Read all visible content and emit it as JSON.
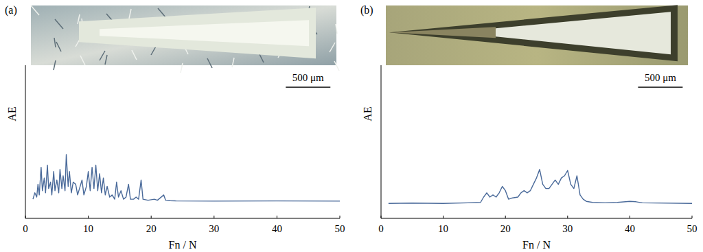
{
  "chart_data": [
    {
      "type": "line",
      "panel_label": "(a)",
      "x_label": "Fn / N",
      "y_label": "AE",
      "scale_bar_label": "500 μm",
      "color": "#4a6a9a",
      "line_style": "solid",
      "tick_labels": "x",
      "xlim": [
        0,
        50
      ],
      "ylim": [
        0,
        100
      ],
      "xticks": [
        0,
        10,
        20,
        30,
        40,
        50
      ],
      "x": [
        1.2,
        1.5,
        1.8,
        2.0,
        2.2,
        2.5,
        2.7,
        3.0,
        3.2,
        3.5,
        3.7,
        4.0,
        4.2,
        4.5,
        4.7,
        5.0,
        5.3,
        5.5,
        5.8,
        6.0,
        6.3,
        6.5,
        6.8,
        7.0,
        7.3,
        7.6,
        8.0,
        8.3,
        8.6,
        9.0,
        9.3,
        9.7,
        10.0,
        10.3,
        10.6,
        10.9,
        11.2,
        11.5,
        11.8,
        12.1,
        12.4,
        12.7,
        13.0,
        13.4,
        13.8,
        14.2,
        14.5,
        14.8,
        15.2,
        15.6,
        16.0,
        16.4,
        16.7,
        17.2,
        17.6,
        18.0,
        18.4,
        18.7,
        19.5,
        20.5,
        21.0,
        22.0,
        22.3,
        23.0,
        24.0,
        30.0,
        40.0,
        50.0
      ],
      "values": [
        9,
        12,
        10,
        16,
        11,
        24,
        13,
        19,
        12,
        25,
        14,
        17,
        11,
        22,
        13,
        18,
        12,
        23,
        14,
        20,
        13,
        30,
        15,
        22,
        12,
        17,
        16,
        11,
        14,
        18,
        11,
        15,
        22,
        13,
        24,
        14,
        25,
        13,
        21,
        12,
        19,
        11,
        15,
        10,
        11,
        9,
        17,
        10,
        13,
        9,
        10,
        16,
        9,
        9,
        10,
        9,
        18,
        9,
        8.5,
        9,
        8.5,
        11,
        8.5,
        8.3,
        8.2,
        8.1,
        8.2,
        8.1
      ]
    },
    {
      "type": "line",
      "panel_label": "(b)",
      "x_label": "Fn / N",
      "y_label": "AE",
      "scale_bar_label": "500 μm",
      "color": "#4a6a9a",
      "line_style": "solid",
      "tick_labels": "x",
      "xlim": [
        0,
        50
      ],
      "ylim": [
        0,
        100
      ],
      "xticks": [
        0,
        10,
        20,
        30,
        40,
        50
      ],
      "x": [
        1.2,
        5,
        10,
        14,
        16,
        16.5,
        17,
        17.5,
        18,
        18.5,
        19,
        19.5,
        20,
        20.5,
        21,
        22,
        22.5,
        23,
        23.5,
        24,
        24.5,
        25,
        25.5,
        26,
        26.5,
        27,
        27.5,
        28,
        28.5,
        29,
        29.5,
        30,
        30.5,
        31,
        31.5,
        32,
        32.5,
        33,
        34,
        36,
        38,
        40,
        41,
        42,
        50
      ],
      "values": [
        7,
        7.2,
        7,
        7.3,
        7.5,
        10,
        12,
        10,
        11,
        10,
        12,
        15,
        13,
        9,
        9.5,
        10,
        12,
        13,
        12,
        13,
        16,
        19,
        23,
        16,
        14,
        14,
        16,
        18,
        16,
        19,
        20,
        22.5,
        16,
        14,
        20,
        11,
        9,
        8,
        7.5,
        7.3,
        7.5,
        8,
        7.8,
        7.3,
        7
      ]
    }
  ]
}
